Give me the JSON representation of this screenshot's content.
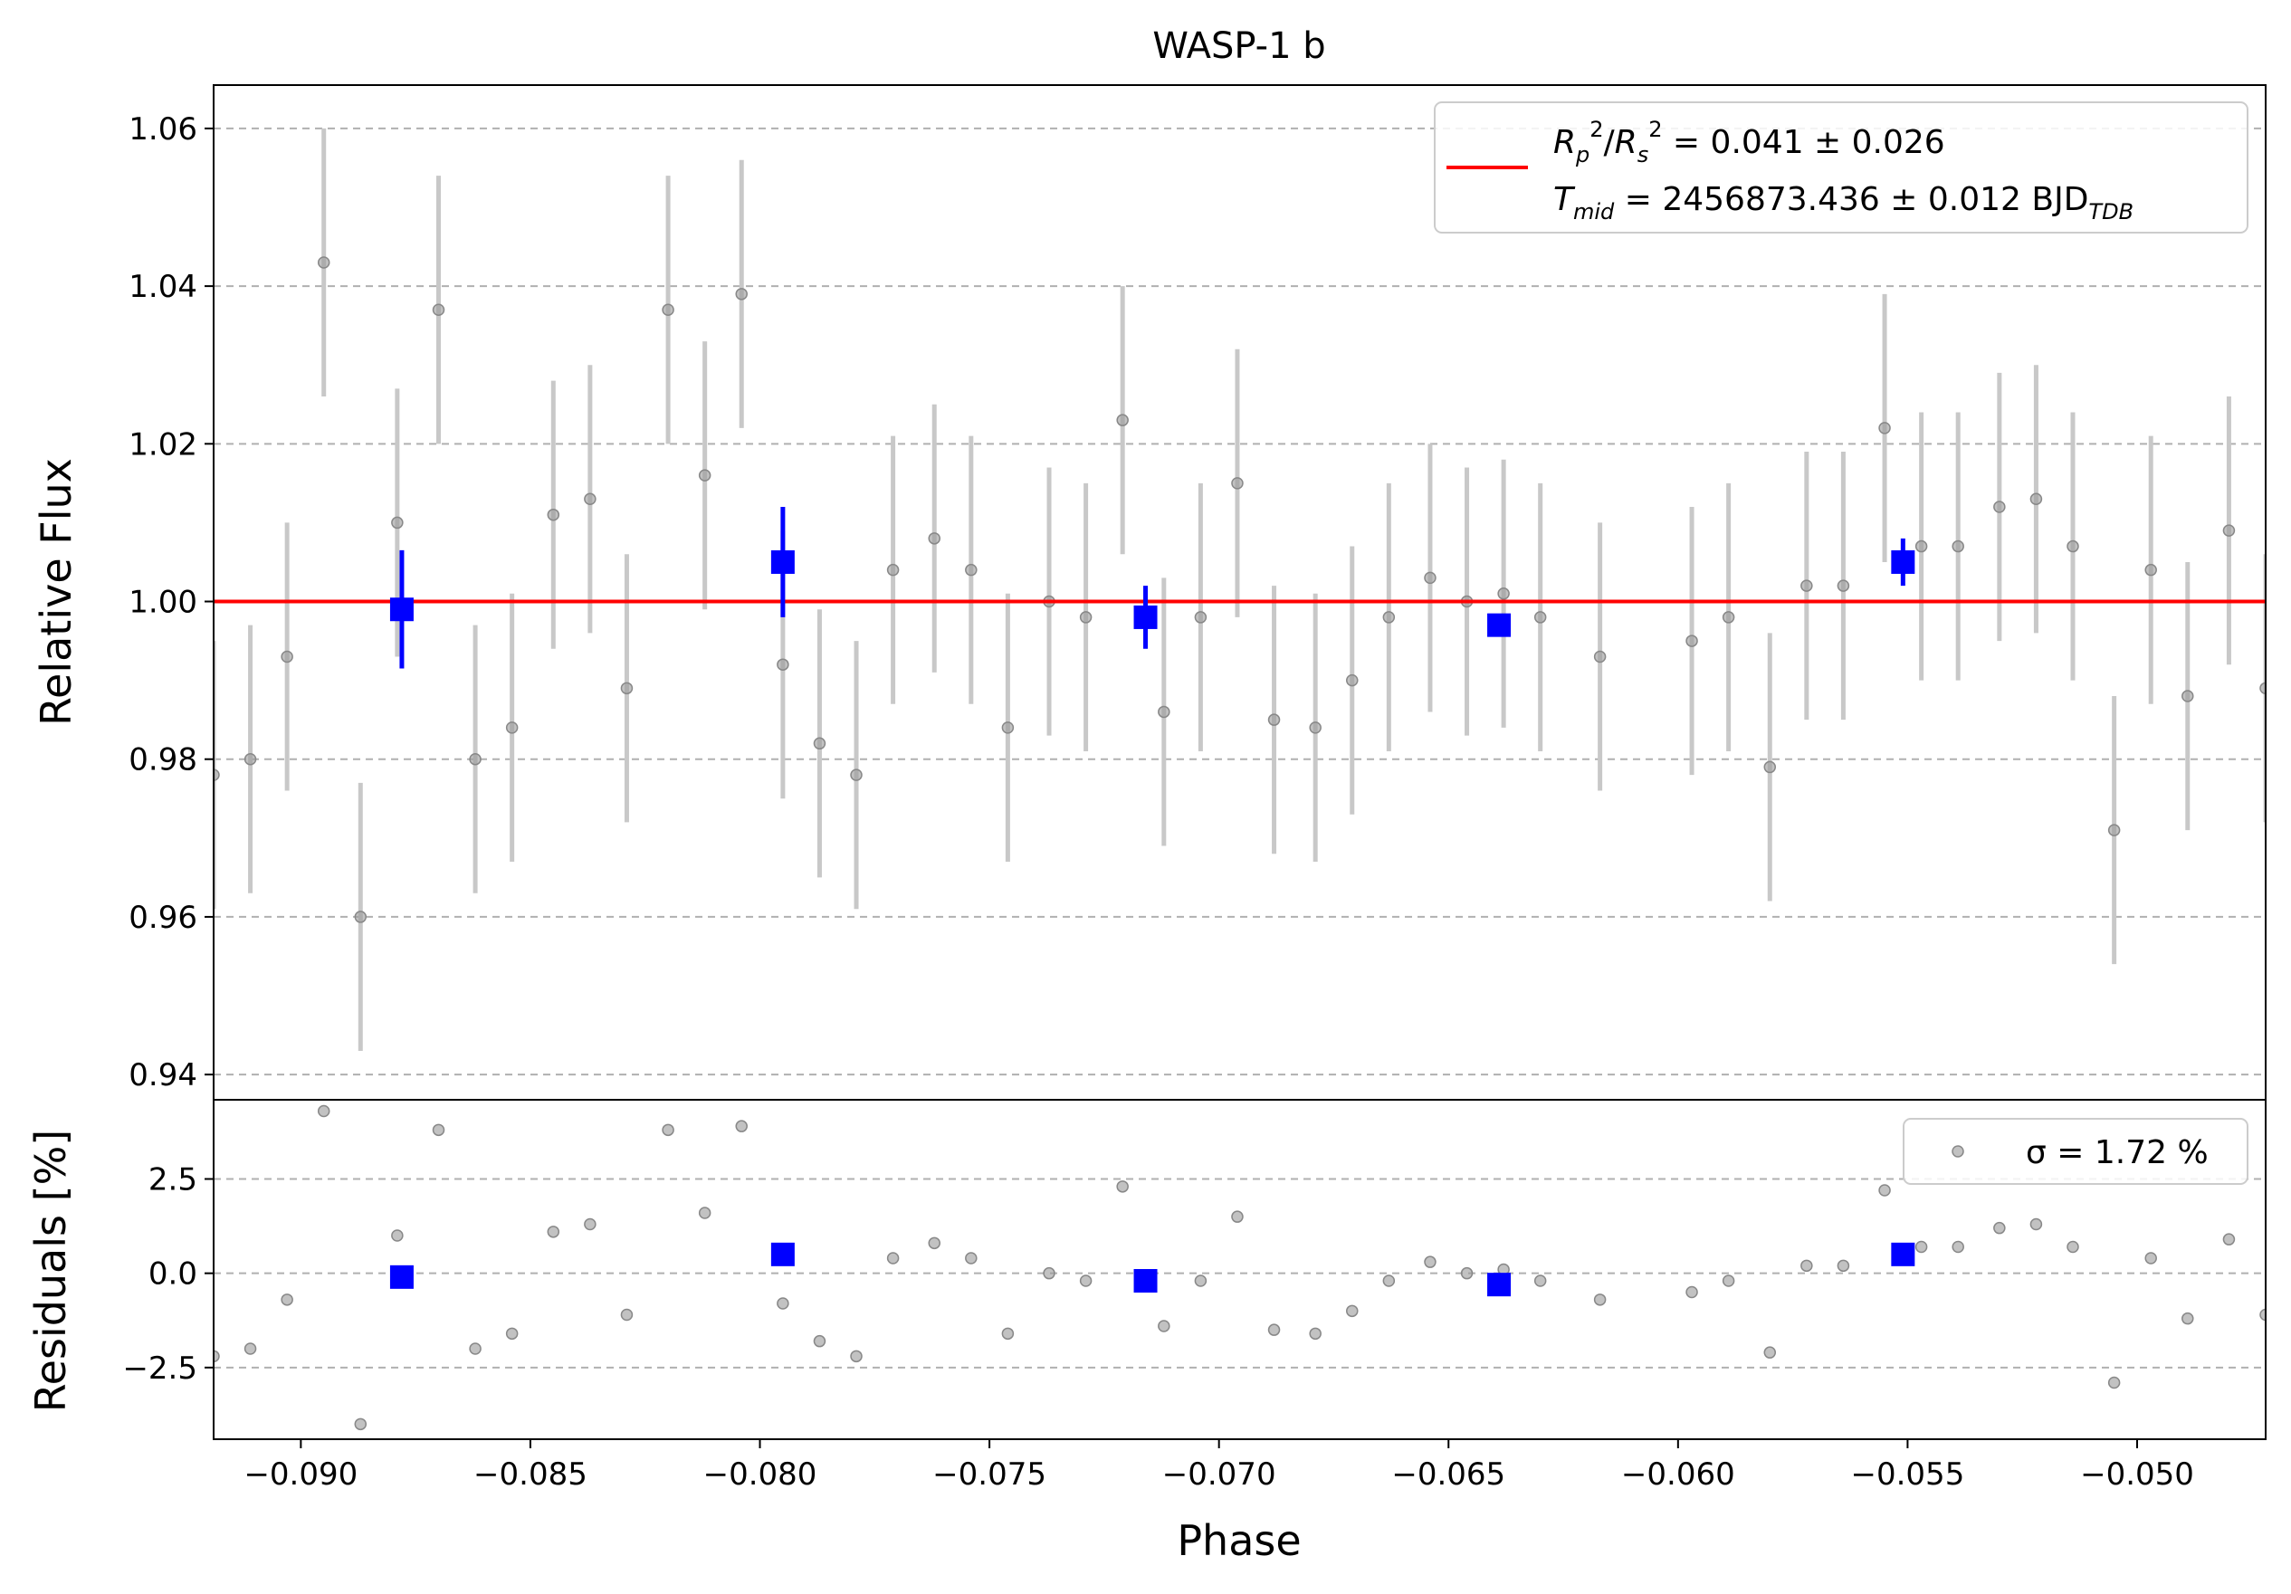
{
  "chart_data": {
    "type": "scatter",
    "title": "WASP-1 b",
    "xlabel": "Phase",
    "xlim": [
      -0.0919,
      -0.0472
    ],
    "xticks": [
      "−0.090",
      "−0.085",
      "−0.080",
      "−0.075",
      "−0.070",
      "−0.065",
      "−0.060",
      "−0.055",
      "−0.050"
    ],
    "xtick_values": [
      -0.09,
      -0.085,
      -0.08,
      -0.075,
      -0.07,
      -0.065,
      -0.06,
      -0.055,
      -0.05
    ],
    "grid": true,
    "top_panel": {
      "ylabel": "Relative Flux",
      "ylim": [
        0.9368,
        1.0655
      ],
      "yticks": [
        "0.94",
        "0.96",
        "0.98",
        "1.00",
        "1.02",
        "1.04",
        "1.06"
      ],
      "ytick_values": [
        0.94,
        0.96,
        0.98,
        1.0,
        1.02,
        1.04,
        1.06
      ],
      "legend": {
        "position": "upper right",
        "line1": "R_p^2/R_s^2 = 0.041 ± 0.026",
        "line2": "T_mid = 2456873.436 ± 0.012 BJD_TDB"
      },
      "model": {
        "name": "model",
        "color": "#ff0000",
        "value": 1.0
      },
      "data": {
        "color": "#999999",
        "error": 0.017,
        "x": [
          -0.0919,
          -0.0911,
          -0.0903,
          -0.0895,
          -0.0887,
          -0.0879,
          -0.087,
          -0.0862,
          -0.0854,
          -0.0845,
          -0.0837,
          -0.0829,
          -0.082,
          -0.0812,
          -0.0804,
          -0.0795,
          -0.0787,
          -0.0779,
          -0.0771,
          -0.0762,
          -0.0754,
          -0.0746,
          -0.0737,
          -0.0729,
          -0.0721,
          -0.0712,
          -0.0704,
          -0.0696,
          -0.0688,
          -0.0679,
          -0.0671,
          -0.0663,
          -0.0654,
          -0.0646,
          -0.0638,
          -0.063,
          -0.0617,
          -0.0597,
          -0.0589,
          -0.058,
          -0.0572,
          -0.0564,
          -0.0555,
          -0.0547,
          -0.0539,
          -0.053,
          -0.0522,
          -0.0514,
          -0.0505,
          -0.0497,
          -0.0489,
          -0.048,
          -0.0472
        ],
        "y": [
          0.978,
          0.98,
          0.993,
          1.043,
          0.96,
          1.01,
          1.037,
          0.98,
          0.984,
          1.011,
          1.013,
          0.989,
          1.037,
          1.016,
          1.039,
          0.992,
          0.982,
          0.978,
          1.004,
          1.008,
          1.004,
          0.984,
          1.0,
          0.998,
          1.023,
          0.986,
          0.998,
          1.015,
          0.985,
          0.984,
          0.99,
          0.998,
          1.003,
          1.0,
          1.001,
          0.998,
          0.993,
          0.995,
          0.998,
          0.979,
          1.002,
          1.002,
          1.022,
          1.007,
          1.007,
          1.012,
          1.013,
          1.007,
          0.971,
          1.004,
          0.988,
          1.009,
          0.989
        ]
      },
      "binned": {
        "color": "#0000ff",
        "x": [
          -0.0878,
          -0.0795,
          -0.0716,
          -0.0639,
          -0.0551
        ],
        "y": [
          0.999,
          1.005,
          0.998,
          0.997,
          1.005
        ],
        "err": [
          0.0075,
          0.007,
          0.004,
          0.0,
          0.003
        ]
      }
    },
    "bottom_panel": {
      "ylabel": "Residuals [%]",
      "ylim": [
        -4.4,
        4.6
      ],
      "yticks": [
        "−2.5",
        "0.0",
        "2.5"
      ],
      "ytick_values": [
        -2.5,
        0.0,
        2.5
      ],
      "legend": {
        "position": "upper right",
        "label": "σ = 1.72 %"
      },
      "data": {
        "color": "#999999",
        "y": [
          -2.2,
          -2.0,
          -0.7,
          4.3,
          -4.0,
          1.0,
          3.8,
          -2.0,
          -1.6,
          1.1,
          1.3,
          -1.1,
          3.8,
          1.6,
          3.9,
          -0.8,
          -1.8,
          -2.2,
          0.4,
          0.8,
          0.4,
          -1.6,
          0.0,
          -0.2,
          2.3,
          -1.4,
          -0.2,
          1.5,
          -1.5,
          -1.6,
          -1.0,
          -0.2,
          0.3,
          0.0,
          0.1,
          -0.2,
          -0.7,
          -0.5,
          -0.2,
          -2.1,
          0.2,
          0.2,
          2.2,
          0.7,
          0.7,
          1.2,
          1.3,
          0.7,
          -2.9,
          0.4,
          -1.2,
          0.9,
          -1.1
        ]
      },
      "binned": {
        "color": "#0000ff",
        "y": [
          -0.1,
          0.5,
          -0.2,
          -0.3,
          0.5
        ]
      }
    }
  }
}
